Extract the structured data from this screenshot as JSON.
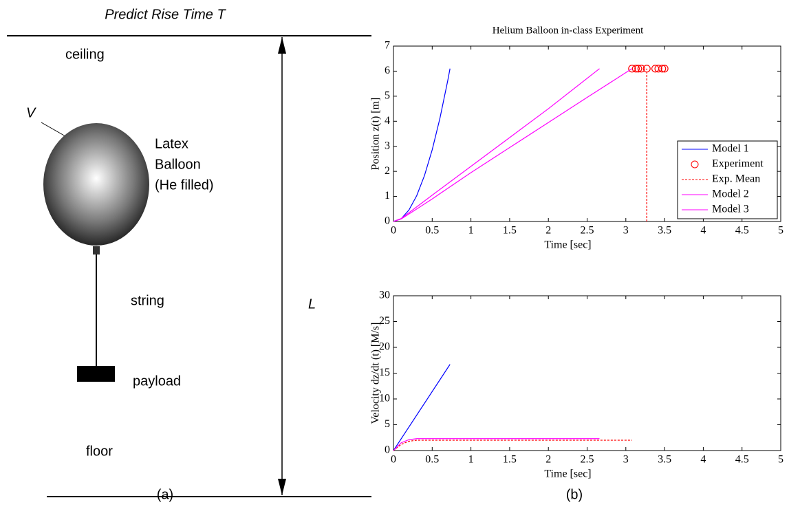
{
  "diagram": {
    "title": "Predict Rise Time T",
    "ceiling": "ceiling",
    "volume": "V",
    "balloon_lines": [
      "Latex",
      "Balloon",
      "(He filled)"
    ],
    "string": "string",
    "payload": "payload",
    "floor": "floor",
    "length": "L",
    "caption_a": "(a)",
    "caption_b": "(b)"
  },
  "chart_data": [
    {
      "type": "line",
      "title": "Helium Balloon in-class Experiment",
      "xlabel": "Time [sec]",
      "ylabel": "Position z(t) [m]",
      "xlim": [
        0,
        5
      ],
      "ylim": [
        0,
        7
      ],
      "xticks": [
        0,
        0.5,
        1,
        1.5,
        2,
        2.5,
        3,
        3.5,
        4,
        4.5,
        5
      ],
      "yticks": [
        0,
        1,
        2,
        3,
        4,
        5,
        6,
        7
      ],
      "legend": "right",
      "series": [
        {
          "name": "Model 1",
          "color": "#0000ff",
          "x": [
            0,
            0.1,
            0.2,
            0.3,
            0.4,
            0.5,
            0.6,
            0.7,
            0.73
          ],
          "values": [
            0,
            0.11,
            0.46,
            1.03,
            1.83,
            2.86,
            4.12,
            5.61,
            6.1
          ]
        },
        {
          "name": "Experiment",
          "color": "#ff0000",
          "marker": "circle",
          "linestyle": "none",
          "x": [
            3.08,
            3.13,
            3.16,
            3.2,
            3.27,
            3.38,
            3.42,
            3.47,
            3.5
          ],
          "values": [
            6.1,
            6.1,
            6.1,
            6.1,
            6.1,
            6.1,
            6.1,
            6.1,
            6.1
          ]
        },
        {
          "name": "Exp. Mean",
          "color": "#ff0000",
          "linestyle": "dashed",
          "x": [
            3.27,
            3.27
          ],
          "values": [
            0,
            6.1
          ]
        },
        {
          "name": "Model 2",
          "color": "#ff00ff",
          "x": [
            0,
            0.1,
            0.2,
            0.5,
            1,
            1.5,
            2,
            2.66
          ],
          "values": [
            0,
            0.12,
            0.35,
            1.05,
            2.2,
            3.35,
            4.5,
            6.1
          ]
        },
        {
          "name": "Model 3",
          "color": "#ff00ff",
          "x": [
            0,
            0.1,
            0.2,
            0.5,
            1,
            1.5,
            2,
            2.5,
            3.08
          ],
          "values": [
            0,
            0.1,
            0.3,
            0.9,
            1.95,
            2.95,
            3.95,
            4.95,
            6.1
          ]
        }
      ]
    },
    {
      "type": "line",
      "xlabel": "Time [sec]",
      "ylabel": "Velocity dz/dt (t) [M/s]",
      "xlim": [
        0,
        5
      ],
      "ylim": [
        0,
        30
      ],
      "xticks": [
        0,
        0.5,
        1,
        1.5,
        2,
        2.5,
        3,
        3.5,
        4,
        4.5,
        5
      ],
      "yticks": [
        0,
        5,
        10,
        15,
        20,
        25,
        30
      ],
      "series": [
        {
          "color": "#0000ff",
          "x": [
            0,
            0.73
          ],
          "values": [
            0,
            16.7
          ]
        },
        {
          "color": "#ff0000",
          "linestyle": "dashed",
          "x": [
            0,
            0.1,
            0.2,
            0.3,
            3.08
          ],
          "values": [
            0,
            1.2,
            1.8,
            2,
            2
          ]
        },
        {
          "color": "#ff00ff",
          "x": [
            0,
            0.1,
            0.2,
            0.3,
            2.66
          ],
          "values": [
            0,
            1.5,
            2.1,
            2.3,
            2.3
          ]
        }
      ]
    }
  ]
}
